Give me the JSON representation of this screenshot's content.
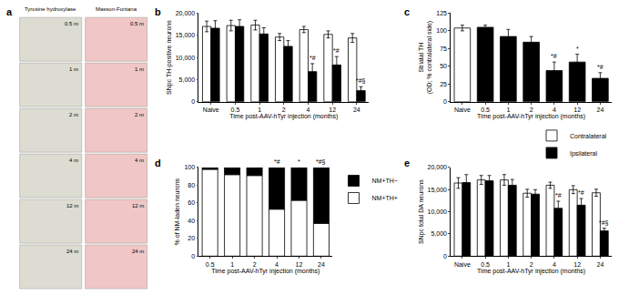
{
  "chart_data": [
    {
      "type": "image_grid",
      "title": "a",
      "columns": [
        {
          "name": "Tyrosine hydroxylase",
          "color": "#dcdcd2"
        },
        {
          "name": "Masson-Fontana",
          "color": "#f0c6c6"
        }
      ],
      "rows": [
        "0.5 m",
        "1 m",
        "2 m",
        "4 m",
        "12 m",
        "24 m"
      ]
    },
    {
      "type": "bar",
      "title": "b",
      "x_label": "Time post-AAV-hTyr injection (months)",
      "y_label": [
        "SNpc TH-positive neurons"
      ],
      "categories": [
        "Naive",
        "0.5",
        "1",
        "2",
        "4",
        "12",
        "24"
      ],
      "series": [
        {
          "name": "Contralateral",
          "color": "#ffffff",
          "values": [
            17000,
            17200,
            17300,
            14600,
            16300,
            15200,
            14400
          ],
          "errors": [
            1200,
            1200,
            1100,
            800,
            700,
            800,
            1000
          ]
        },
        {
          "name": "Ipsilateral",
          "color": "#000000",
          "values": [
            16600,
            17000,
            15300,
            12500,
            6800,
            8300,
            2500
          ],
          "errors": [
            1700,
            1500,
            1400,
            1300,
            1800,
            1900,
            900
          ],
          "annotations": [
            null,
            null,
            null,
            null,
            "*#",
            "*#",
            "*#§"
          ]
        }
      ],
      "ylim": [
        0,
        20000
      ],
      "yticks": [
        0,
        {
          "value": 5000,
          "label": "5,000"
        },
        {
          "value": 10000,
          "label": "10,000"
        },
        {
          "value": 15000,
          "label": "15,000"
        },
        {
          "value": 20000,
          "label": "20,000"
        }
      ],
      "grid": false
    },
    {
      "type": "bar",
      "title": "c",
      "x_label": "Time post-AAV-hTyr injection (months)",
      "y_label": [
        "Striatal TH",
        "(OD; % contralateral side)"
      ],
      "categories": [
        "Naive",
        "0.5",
        "1",
        "2",
        "4",
        "12",
        "24"
      ],
      "values": [
        104,
        105,
        92,
        84,
        44,
        56,
        33
      ],
      "errors": [
        4,
        3,
        10,
        8,
        12,
        11,
        8
      ],
      "colors": [
        "#ffffff",
        "#000000",
        "#000000",
        "#000000",
        "#000000",
        "#000000",
        "#000000"
      ],
      "annotations": [
        null,
        null,
        null,
        null,
        "*#",
        "*",
        "*#"
      ],
      "ylim": [
        0,
        125
      ],
      "yticks": [
        0,
        25,
        50,
        75,
        100,
        125
      ],
      "grid": false
    },
    {
      "type": "bar",
      "title": "d",
      "x_label": "Time post-AAV-hTyr injection (months)",
      "y_label": [
        "% of NM-laden neurons"
      ],
      "categories": [
        "0.5",
        "1",
        "2",
        "4",
        "12",
        "24"
      ],
      "stacked": true,
      "series": [
        {
          "name": "NM+TH+",
          "color": "#ffffff",
          "values": [
            98,
            92,
            91,
            53,
            63,
            37
          ]
        },
        {
          "name": "NM+TH−",
          "color": "#000000",
          "values": [
            2,
            8,
            9,
            47,
            37,
            63
          ],
          "annotations": [
            null,
            null,
            null,
            "*#",
            "*",
            "*#§"
          ]
        }
      ],
      "ylim": [
        0,
        100
      ],
      "yticks": [
        0,
        20,
        40,
        60,
        80,
        100
      ],
      "legend": "right",
      "grid": false
    },
    {
      "type": "bar",
      "title": "e",
      "x_label": "Time post-AAV-hTyr injection (months)",
      "y_label": [
        "SNpc total DA neurons"
      ],
      "categories": [
        "Naive",
        "0.5",
        "1",
        "2",
        "4",
        "12",
        "24"
      ],
      "series": [
        {
          "name": "Contralateral",
          "color": "#ffffff",
          "values": [
            16500,
            17200,
            17200,
            14200,
            16000,
            15000,
            14300
          ],
          "errors": [
            1200,
            1000,
            1200,
            900,
            700,
            900,
            800
          ]
        },
        {
          "name": "Ipsilateral",
          "color": "#000000",
          "values": [
            16600,
            17000,
            16000,
            14000,
            10800,
            11500,
            5700
          ],
          "errors": [
            1800,
            1200,
            1300,
            1000,
            1600,
            1500,
            600
          ],
          "annotations": [
            null,
            null,
            null,
            null,
            "*#",
            "*#",
            "*#§"
          ]
        }
      ],
      "ylim": [
        0,
        20000
      ],
      "yticks": [
        0,
        {
          "value": 5000,
          "label": "5,000"
        },
        {
          "value": 10000,
          "label": "10,000"
        },
        {
          "value": 15000,
          "label": "15,000"
        },
        {
          "value": 20000,
          "label": "20,000"
        }
      ],
      "legend": "top right",
      "grid": false
    }
  ]
}
